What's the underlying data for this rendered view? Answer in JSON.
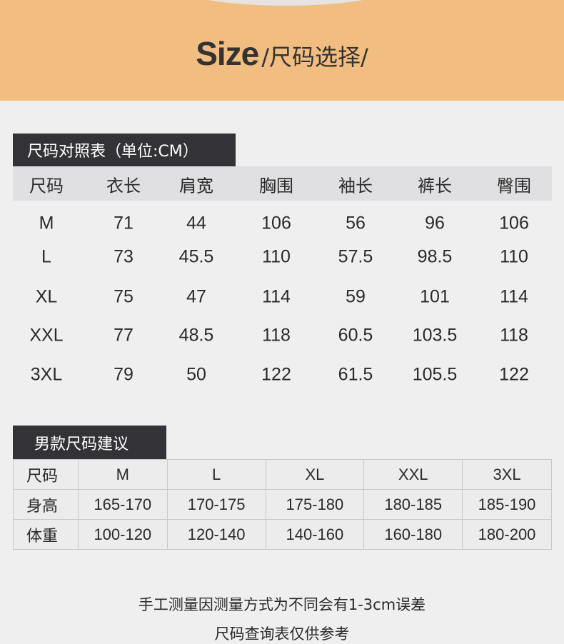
{
  "header": {
    "title_en": "Size",
    "title_cn": "/尺码选择/"
  },
  "colors": {
    "band": "#f2bd80",
    "tag": "#333236",
    "background": "#efefef"
  },
  "size_chart": {
    "title": "尺码对照表（单位:CM）",
    "columns": [
      "尺码",
      "衣长",
      "肩宽",
      "胸围",
      "袖长",
      "裤长",
      "臀围"
    ],
    "rows": [
      [
        "M",
        "71",
        "44",
        "106",
        "56",
        "96",
        "106"
      ],
      [
        "L",
        "73",
        "45.5",
        "110",
        "57.5",
        "98.5",
        "110"
      ],
      [
        "XL",
        "75",
        "47",
        "114",
        "59",
        "101",
        "114"
      ],
      [
        "XXL",
        "77",
        "48.5",
        "118",
        "60.5",
        "103.5",
        "118"
      ],
      [
        "3XL",
        "79",
        "50",
        "122",
        "61.5",
        "105.5",
        "122"
      ]
    ]
  },
  "recommend": {
    "title": "男款尺码建议",
    "rows": [
      [
        "尺码",
        "M",
        "L",
        "XL",
        "XXL",
        "3XL"
      ],
      [
        "身高",
        "165-170",
        "170-175",
        "175-180",
        "180-185",
        "185-190"
      ],
      [
        "体重",
        "100-120",
        "120-140",
        "140-160",
        "160-180",
        "180-200"
      ]
    ]
  },
  "notes": [
    "手工测量因测量方式为不同会有1-3cm误差",
    "尺码查询表仅供参考"
  ]
}
